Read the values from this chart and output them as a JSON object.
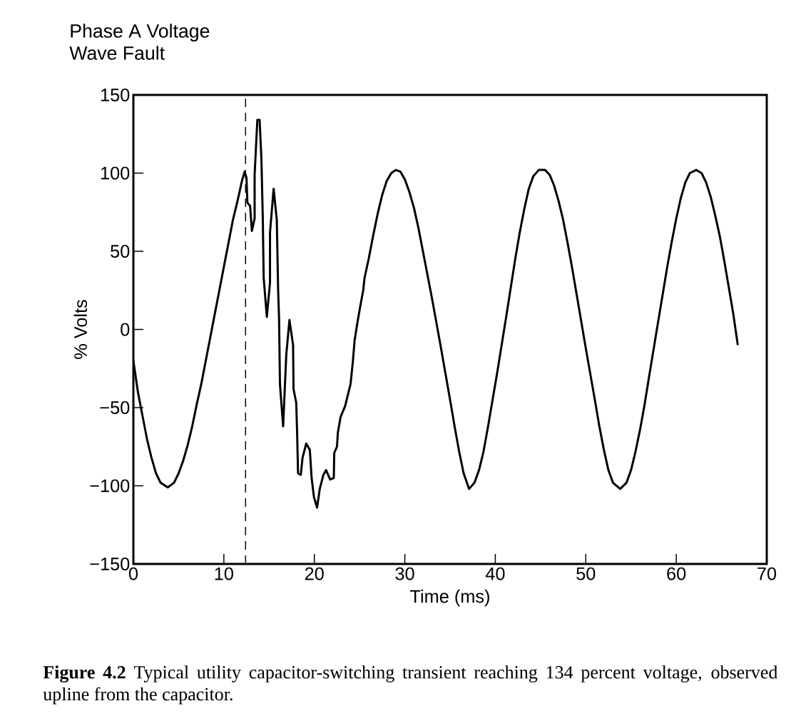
{
  "chart_data": {
    "type": "line",
    "title": "Phase A Voltage",
    "subtitle": "Wave Fault",
    "xlabel": "Time (ms)",
    "ylabel": "% Volts",
    "annotations": [
      "**Figure 4.2** Typical utility capacitor-switching transient reaching 134 percent voltage, observed upline from the capacitor."
    ],
    "xlim": [
      0,
      70
    ],
    "ylim": [
      -150,
      150
    ],
    "xticks": [
      0,
      10,
      20,
      30,
      40,
      50,
      60,
      70
    ],
    "yticks": [
      {
        "value": -150,
        "label": "−150"
      },
      {
        "value": -100,
        "label": "−100"
      },
      {
        "value": -50,
        "label": "−50"
      },
      0,
      50,
      100,
      150
    ],
    "grid": false,
    "marker": "none",
    "line_style": "solid",
    "ref_lines": [
      {
        "axis": "x",
        "value": 12.4,
        "line_style": "dashed",
        "color": "#000000"
      }
    ],
    "series": [
      {
        "color": "#000000",
        "x": [
          0,
          0.5,
          1,
          1.5,
          2,
          2.5,
          3,
          3.8,
          4.5,
          5,
          5.5,
          6,
          6.5,
          7,
          7.5,
          8,
          8.5,
          9,
          9.5,
          10,
          10.5,
          11,
          11.5,
          12,
          12.3,
          12.5,
          12.6,
          12.9,
          13.1,
          13.4,
          13.4,
          13.7,
          13.95,
          14.15,
          14.3,
          14.4,
          14.75,
          15.1,
          15.1,
          15.5,
          15.85,
          16.0,
          16.1,
          16.2,
          16.55,
          16.9,
          17.25,
          17.65,
          17.7,
          18.0,
          18.1,
          18.2,
          18.5,
          18.7,
          19.1,
          19.5,
          19.7,
          19.95,
          20.3,
          20.6,
          21.0,
          21.3,
          21.75,
          22.15,
          22.2,
          22.5,
          22.6,
          22.9,
          23.4,
          23.7,
          24.0,
          24.25,
          24.45,
          24.75,
          25.05,
          25.4,
          25.55,
          26,
          26.5,
          27,
          27.5,
          28,
          28.5,
          29,
          29.5,
          30,
          30.5,
          31,
          31.5,
          32,
          33,
          34,
          35,
          35.5,
          36,
          36.5,
          37.1,
          37.7,
          38.2,
          38.7,
          39.2,
          39.7,
          40.2,
          41.2,
          42.2,
          42.7,
          43.2,
          43.7,
          44.2,
          44.8,
          45.5,
          46,
          46.5,
          47,
          47.5,
          48,
          48.5,
          49,
          50,
          51,
          51.5,
          52,
          52.5,
          53,
          53.8,
          54.5,
          55,
          55.5,
          56,
          56.5,
          57,
          58,
          59,
          59.5,
          60,
          60.5,
          61,
          61.5,
          62.2,
          62.8,
          63.3,
          63.8,
          64.3,
          64.8,
          65.3,
          65.8,
          66.3,
          66.8
        ],
        "values": [
          -20,
          -40,
          -55,
          -70,
          -82,
          -92,
          -98,
          -101,
          -98,
          -92,
          -84,
          -74,
          -62,
          -48,
          -35,
          -20,
          -5,
          10,
          25,
          40,
          55,
          70,
          82,
          95,
          101,
          97,
          81,
          79,
          63,
          71,
          99,
          134,
          134,
          109,
          72,
          33,
          8,
          30,
          62,
          90,
          70,
          25,
          7,
          -35,
          -62,
          -16,
          6,
          -10,
          -38,
          -47,
          -67,
          -92,
          -93,
          -82,
          -73,
          -77,
          -95,
          -107,
          -114,
          -102,
          -93,
          -90,
          -96,
          -95,
          -79,
          -75,
          -66,
          -56,
          -49,
          -42,
          -35,
          -21,
          -7,
          4,
          14,
          25,
          33,
          45,
          60,
          74,
          86,
          95,
          100,
          102,
          101,
          96,
          88,
          78,
          65,
          50,
          20,
          -12,
          -45,
          -62,
          -78,
          -92,
          -102,
          -98,
          -90,
          -78,
          -62,
          -45,
          -28,
          8,
          45,
          62,
          77,
          90,
          98,
          102,
          102,
          99,
          92,
          82,
          70,
          55,
          39,
          22,
          -12,
          -45,
          -62,
          -77,
          -90,
          -98,
          -102,
          -98,
          -90,
          -78,
          -64,
          -48,
          -30,
          5,
          40,
          56,
          71,
          84,
          94,
          100,
          102,
          100,
          94,
          85,
          73,
          60,
          44,
          27,
          10,
          -10
        ]
      }
    ]
  }
}
